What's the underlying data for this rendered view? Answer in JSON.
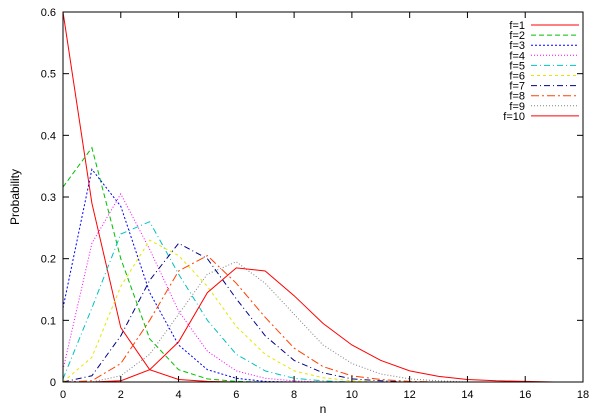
{
  "chart_data": {
    "type": "line",
    "title": "",
    "xlabel": "n",
    "ylabel": "Probability",
    "xlim": [
      0,
      18
    ],
    "ylim": [
      0,
      0.6
    ],
    "x_ticks": [
      "0",
      "2",
      "4",
      "6",
      "8",
      "10",
      "12",
      "14",
      "16",
      "18"
    ],
    "y_ticks": [
      "0",
      "0.1",
      "0.2",
      "0.3",
      "0.4",
      "0.5",
      "0.6"
    ],
    "grid": false,
    "legend_position": "top-right",
    "x": [
      0,
      1,
      2,
      3,
      4,
      5,
      6,
      7,
      8,
      9,
      10,
      11,
      12,
      13,
      14,
      15,
      16,
      17
    ],
    "series": [
      {
        "name": "f=1",
        "color": "#ff0000",
        "dash": "solid",
        "values": [
          0.6,
          0.29,
          0.088,
          0.02,
          0.004,
          0.001,
          0,
          0,
          0,
          0,
          0,
          0,
          0,
          0,
          0,
          0,
          0,
          0
        ]
      },
      {
        "name": "f=2",
        "color": "#00c000",
        "dash": "dashed",
        "values": [
          0.316,
          0.38,
          0.2,
          0.07,
          0.02,
          0.005,
          0.001,
          0,
          0,
          0,
          0,
          0,
          0,
          0,
          0,
          0,
          0,
          0
        ]
      },
      {
        "name": "f=3",
        "color": "#0000ff",
        "dash": "dotted",
        "values": [
          0.12,
          0.345,
          0.285,
          0.145,
          0.06,
          0.02,
          0.006,
          0.001,
          0,
          0,
          0,
          0,
          0,
          0,
          0,
          0,
          0,
          0
        ]
      },
      {
        "name": "f=4",
        "color": "#ff00ff",
        "dash": "dotted-fine",
        "values": [
          0.02,
          0.225,
          0.305,
          0.215,
          0.115,
          0.05,
          0.018,
          0.006,
          0.002,
          0,
          0,
          0,
          0,
          0,
          0,
          0,
          0,
          0
        ]
      },
      {
        "name": "f=5",
        "color": "#00c0c0",
        "dash": "dashdot",
        "values": [
          0.005,
          0.12,
          0.24,
          0.26,
          0.175,
          0.1,
          0.045,
          0.018,
          0.006,
          0.002,
          0,
          0,
          0,
          0,
          0,
          0,
          0,
          0
        ]
      },
      {
        "name": "f=6",
        "color": "#e6e600",
        "dash": "dashed-short",
        "values": [
          0,
          0.04,
          0.155,
          0.23,
          0.205,
          0.155,
          0.09,
          0.045,
          0.018,
          0.007,
          0.002,
          0,
          0,
          0,
          0,
          0,
          0,
          0
        ]
      },
      {
        "name": "f=7",
        "color": "#000080",
        "dash": "dashdot",
        "values": [
          0,
          0.01,
          0.075,
          0.165,
          0.225,
          0.2,
          0.135,
          0.075,
          0.035,
          0.015,
          0.005,
          0.002,
          0,
          0,
          0,
          0,
          0,
          0
        ]
      },
      {
        "name": "f=8",
        "color": "#ff4000",
        "dash": "dashdot-long",
        "values": [
          0,
          0.002,
          0.03,
          0.1,
          0.18,
          0.205,
          0.16,
          0.105,
          0.055,
          0.025,
          0.01,
          0.004,
          0.001,
          0,
          0,
          0,
          0,
          0
        ]
      },
      {
        "name": "f=9",
        "color": "#808080",
        "dash": "dotted-fine",
        "values": [
          0,
          0,
          0.01,
          0.045,
          0.11,
          0.175,
          0.195,
          0.16,
          0.11,
          0.06,
          0.03,
          0.013,
          0.005,
          0.002,
          0,
          0,
          0,
          0
        ]
      },
      {
        "name": "f=10",
        "color": "#ff0000",
        "dash": "solid",
        "values": [
          0,
          0,
          0.002,
          0.02,
          0.065,
          0.145,
          0.185,
          0.18,
          0.14,
          0.095,
          0.06,
          0.035,
          0.018,
          0.009,
          0.004,
          0.002,
          0.001,
          0
        ]
      }
    ]
  }
}
